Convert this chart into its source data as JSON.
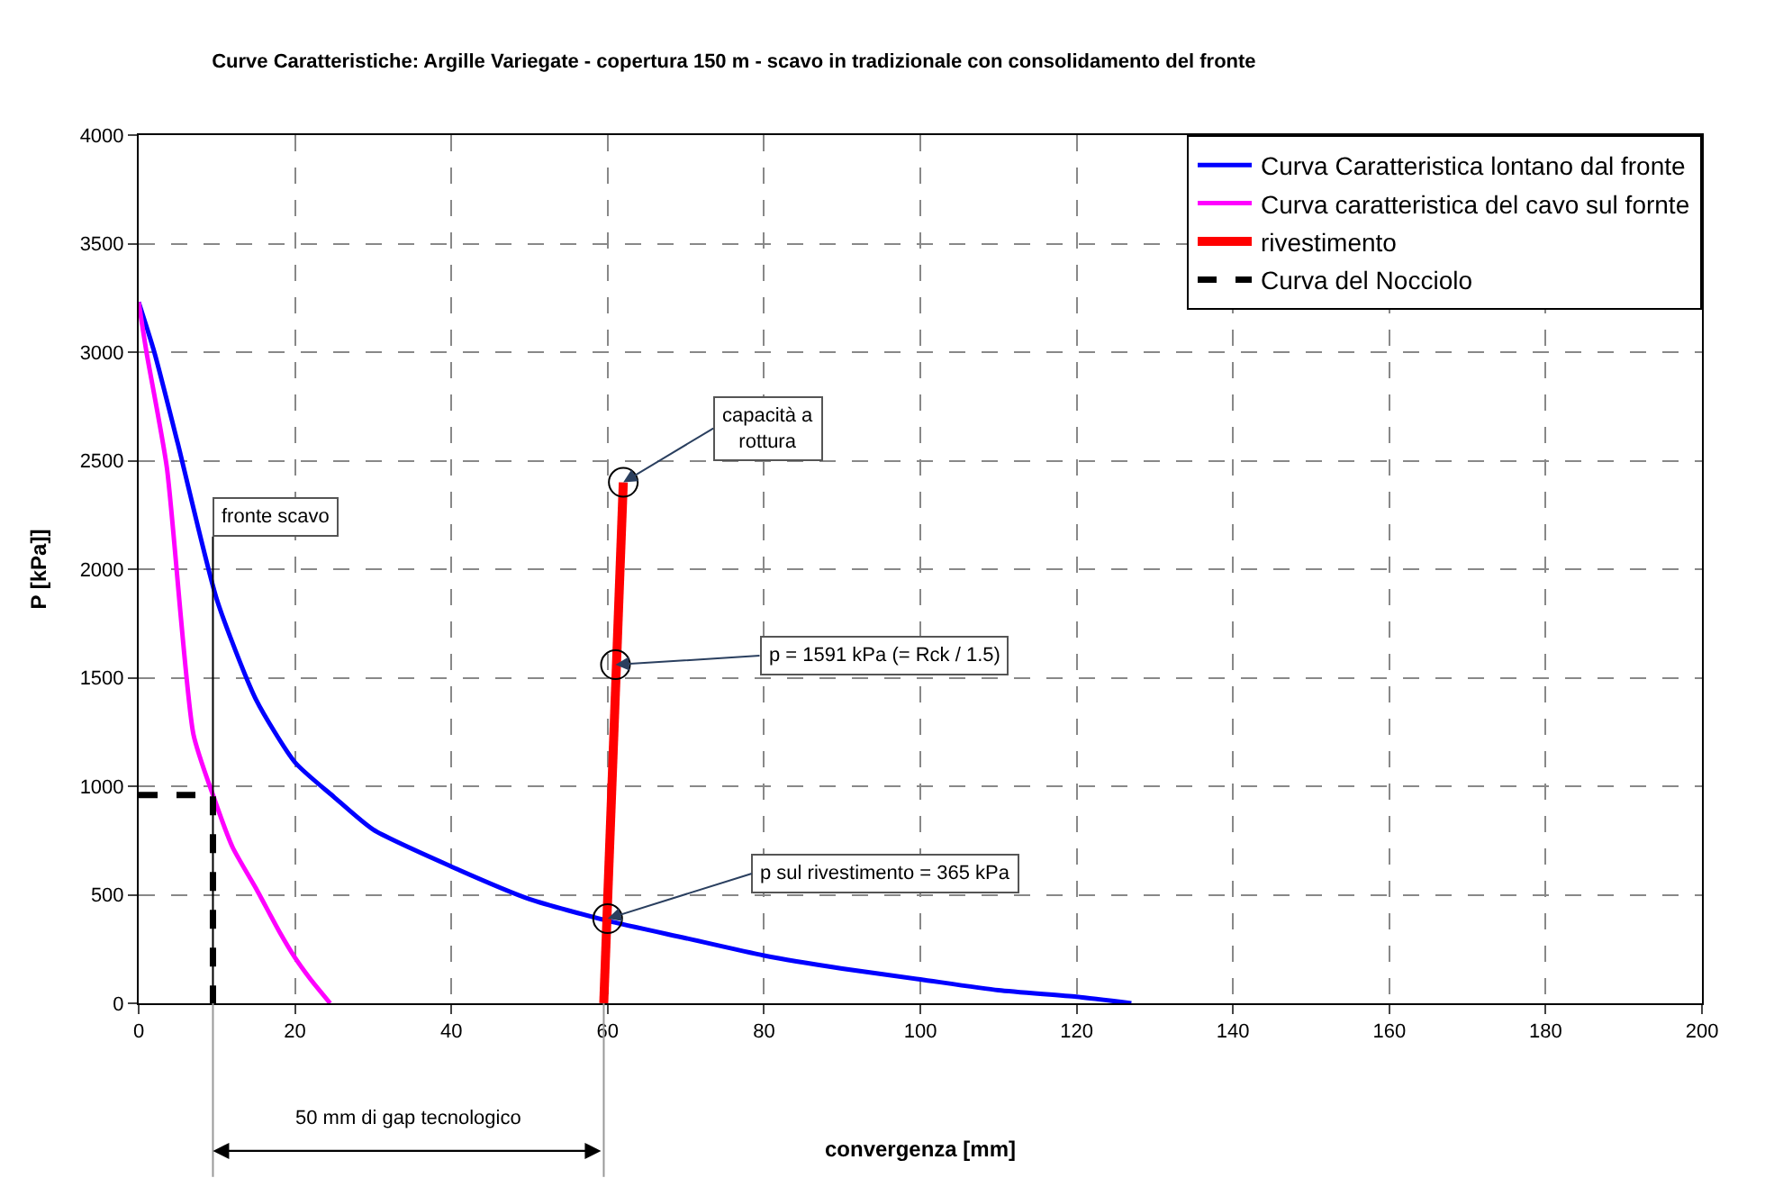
{
  "chart_data": {
    "type": "line",
    "title": "Curve Caratteristiche: Argille Variegate - copertura 150 m - scavo in tradizionale con consolidamento del fronte",
    "xlabel": "convergenza [mm]",
    "ylabel": "P [kPa]]",
    "xlim": [
      0,
      200
    ],
    "xticks": [
      0,
      20,
      40,
      60,
      80,
      100,
      120,
      140,
      160,
      180,
      200
    ],
    "ylim": [
      0,
      4000
    ],
    "yticks": [
      0,
      500,
      1000,
      1500,
      2000,
      2500,
      3000,
      3500,
      4000
    ],
    "grid": true,
    "legend": "top right",
    "series": [
      {
        "name": "Curva Caratteristica lontano dal fronte",
        "color": "#0000ff",
        "x": [
          0,
          2,
          5,
          10,
          15,
          20,
          25,
          30,
          40,
          50,
          60,
          70,
          80,
          90,
          100,
          110,
          120,
          127
        ],
        "values": [
          3230,
          3000,
          2580,
          1860,
          1400,
          1110,
          950,
          800,
          630,
          480,
          380,
          300,
          220,
          160,
          110,
          60,
          30,
          0
        ]
      },
      {
        "name": "Curva caratteristica del cavo sul fornte",
        "color": "#ff00ff",
        "x": [
          0,
          1,
          3.6,
          7,
          9.5,
          12,
          15,
          18,
          20,
          22,
          24.5
        ],
        "values": [
          3230,
          3000,
          2470,
          1240,
          960,
          720,
          530,
          330,
          210,
          110,
          0
        ]
      },
      {
        "name": "rivestimento",
        "color": "#ff0000",
        "x": [
          59.5,
          62
        ],
        "values": [
          0,
          2400
        ]
      },
      {
        "name": "Curva del Nocciolo",
        "color": "#000000",
        "line_style": "dashed",
        "x": [
          0,
          9.5,
          9.5
        ],
        "values": [
          960,
          960,
          0
        ]
      }
    ],
    "ref_lines": [
      {
        "axis": "x",
        "value": 9.5,
        "label": "fronte scavo"
      }
    ],
    "annotations": [
      {
        "text": "capacità a\nrottura",
        "x": 62,
        "y": 2400
      },
      {
        "text": "p = 1591 kPa (= Rck / 1.5)",
        "x": 61,
        "y": 1560
      },
      {
        "text": "p sul rivestimento = 365 kPa",
        "x": 60,
        "y": 390
      },
      "50 mm di gap tecnologico"
    ]
  }
}
